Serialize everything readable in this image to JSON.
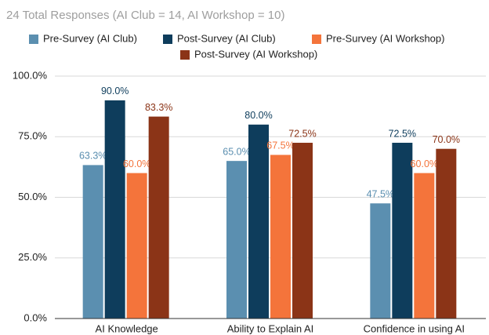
{
  "chart_data": {
    "type": "bar",
    "title": "24 Total Responses (AI Club = 14, AI Workshop = 10)",
    "categories": [
      "AI Knowledge",
      "Ability to Explain AI",
      "Confidence in using AI"
    ],
    "series": [
      {
        "name": "Pre-Survey (AI Club)",
        "color": "#5b8fb0",
        "values": [
          63.3,
          65.0,
          47.5
        ],
        "value_labels": [
          "63.3%",
          "65.0%",
          "47.5%"
        ]
      },
      {
        "name": "Post-Survey (AI Club)",
        "color": "#0e3d5c",
        "values": [
          90.0,
          80.0,
          72.5
        ],
        "value_labels": [
          "90.0%",
          "80.0%",
          "72.5%"
        ]
      },
      {
        "name": "Pre-Survey (AI Workshop)",
        "color": "#f4743b",
        "values": [
          60.0,
          67.5,
          60.0
        ],
        "value_labels": [
          "60.0%",
          "67.5%",
          "60.0%"
        ]
      },
      {
        "name": "Post-Survey (AI Workshop)",
        "color": "#8b3417",
        "values": [
          83.3,
          72.5,
          70.0
        ],
        "value_labels": [
          "83.3%",
          "72.5%",
          "70.0%"
        ]
      }
    ],
    "ylim": [
      0,
      100
    ],
    "yticks": [
      {
        "value": 0,
        "label": "0.0%"
      },
      {
        "value": 25,
        "label": "25.0%"
      },
      {
        "value": 50,
        "label": "50.0%"
      },
      {
        "value": 75,
        "label": "75.0%"
      },
      {
        "value": 100,
        "label": "100.0%"
      }
    ],
    "grid": true,
    "legend": "top"
  }
}
